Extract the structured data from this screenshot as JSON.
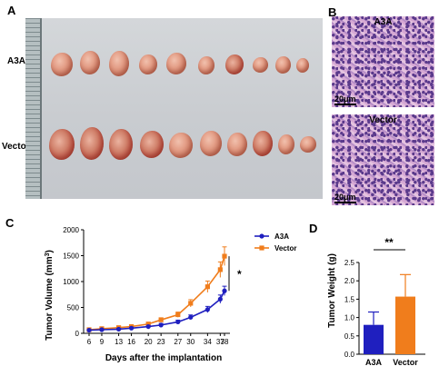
{
  "panels": {
    "a": {
      "letter": "A",
      "row_labels": [
        "A3A",
        "Vector"
      ]
    },
    "b": {
      "letter": "B",
      "images": [
        {
          "title": "A3A",
          "scale_label": "20μm"
        },
        {
          "title": "Vector",
          "scale_label": "20μm"
        }
      ]
    },
    "c": {
      "letter": "C"
    },
    "d": {
      "letter": "D"
    }
  },
  "colors": {
    "a3a": "#1f1fbf",
    "vector": "#f07d1c"
  },
  "chart_data": [
    {
      "type": "line",
      "xlabel": "Days after the implantation",
      "ylabel": "Tumor Volume (mm³)",
      "x": [
        6,
        9,
        13,
        16,
        20,
        23,
        27,
        30,
        34,
        37,
        38
      ],
      "ylim": [
        0,
        2000
      ],
      "yticks": [
        0,
        500,
        1000,
        1500,
        2000
      ],
      "legend_position": "top-right",
      "significance": "*",
      "series": [
        {
          "name": "A3A",
          "values": [
            60,
            70,
            80,
            100,
            130,
            160,
            220,
            310,
            460,
            660,
            820
          ],
          "errors": [
            15,
            15,
            18,
            20,
            25,
            30,
            35,
            45,
            60,
            80,
            90
          ]
        },
        {
          "name": "Vector",
          "values": [
            70,
            90,
            110,
            130,
            180,
            260,
            360,
            580,
            900,
            1230,
            1490
          ],
          "errors": [
            15,
            18,
            20,
            25,
            30,
            40,
            50,
            70,
            110,
            150,
            180
          ]
        }
      ]
    },
    {
      "type": "bar",
      "ylabel": "Tumor Weight (g)",
      "categories": [
        "A3A",
        "Vector"
      ],
      "values": [
        0.8,
        1.57
      ],
      "errors": [
        0.35,
        0.6
      ],
      "ylim": [
        0,
        2.5
      ],
      "yticks": [
        0.0,
        0.5,
        1.0,
        1.5,
        2.0,
        2.5
      ],
      "significance": "**"
    }
  ]
}
